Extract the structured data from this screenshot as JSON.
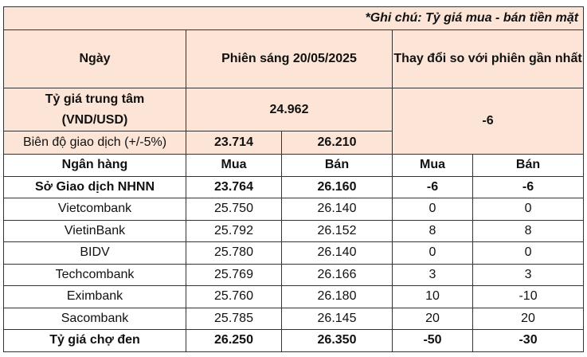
{
  "note": "*Ghi chú: Tỷ giá mua - bán tiền mặt",
  "header": {
    "date_label": "Ngày",
    "session": "Phiên sáng 20/05/2025",
    "change_label": "Thay đổi so với phiên gần nhất"
  },
  "central": {
    "label": "Tỷ giá trung tâm (VND/USD)",
    "value": "24.962",
    "change": "-6"
  },
  "range": {
    "label": "Biên độ giao dịch (+/-5%)",
    "low": "23.714",
    "high": "26.210"
  },
  "columns": [
    "Ngân hàng",
    "Mua",
    "Bán",
    "Mua",
    "Bán"
  ],
  "rows": [
    {
      "bank": "Sở Giao dịch NHNN",
      "buy": "23.764",
      "sell": "26.160",
      "buy_change": "-6",
      "sell_change": "-6",
      "bold": true
    },
    {
      "bank": "Vietcombank",
      "buy": "25.750",
      "sell": "26.140",
      "buy_change": "0",
      "sell_change": "0"
    },
    {
      "bank": "VietinBank",
      "buy": "25.792",
      "sell": "26.152",
      "buy_change": "8",
      "sell_change": "8"
    },
    {
      "bank": "BIDV",
      "buy": "25.780",
      "sell": "26.140",
      "buy_change": "0",
      "sell_change": "0"
    },
    {
      "bank": "Techcombank",
      "buy": "25.769",
      "sell": "26.166",
      "buy_change": "3",
      "sell_change": "3"
    },
    {
      "bank": "Eximbank",
      "buy": "25.760",
      "sell": "26.180",
      "buy_change": "10",
      "sell_change": "-10"
    },
    {
      "bank": "Sacombank",
      "buy": "25.785",
      "sell": "26.145",
      "buy_change": "20",
      "sell_change": "20"
    },
    {
      "bank": "Tỷ giá chợ đen",
      "buy": "26.250",
      "sell": "26.350",
      "buy_change": "-50",
      "sell_change": "-30",
      "bold": true
    }
  ]
}
